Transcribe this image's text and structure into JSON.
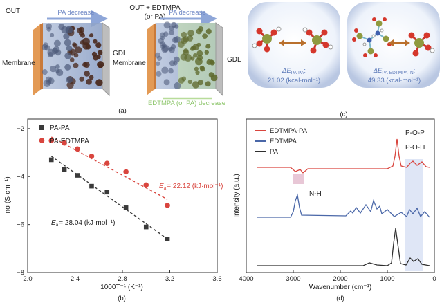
{
  "panel_a": {
    "title_left": "OUT",
    "title_right_line1": "OUT + EDTMPA",
    "title_right_line2": "(or PA)",
    "arrow_left": "PA decrease",
    "arrow_right": "PA decrease",
    "label_membrane_left": "Membrane",
    "label_gdl_left": "GDL",
    "label_membrane_right": "Membrane",
    "label_gdl_right": "GDL",
    "arrow_bottom": "EDTMPA (or PA) decrease",
    "caption": "(a)"
  },
  "panel_c": {
    "energy_left_symbol": "ΔE",
    "energy_left_sub": "PA-PA",
    "energy_left_suffix": ":",
    "energy_left_value": "21.02 (kcal·mol⁻¹)",
    "energy_right_symbol": "ΔE",
    "energy_right_sub": "PA-EDTMPA_N",
    "energy_right_suffix": ":",
    "energy_right_value": "49.33 (kcal·mol⁻¹)",
    "caption": "(c)"
  },
  "chart_data": [
    {
      "type": "scatter",
      "panel": "b",
      "xlabel": "1000T⁻¹ (K⁻¹)",
      "ylabel": "lnσ (S·cm⁻¹)",
      "xlim": [
        2.0,
        3.6
      ],
      "ylim": [
        -8,
        -1.6
      ],
      "xticks": [
        2.0,
        2.4,
        2.8,
        3.2,
        3.6
      ],
      "yticks": [
        -8,
        -6,
        -4,
        -2
      ],
      "legend_position": "top-left",
      "series": [
        {
          "name": "PA-PA",
          "marker": "square",
          "color": "#3a3a3a",
          "x": [
            2.2,
            2.31,
            2.42,
            2.54,
            2.67,
            2.83,
            3.0,
            3.18
          ],
          "y": [
            -3.3,
            -3.7,
            -3.95,
            -4.4,
            -4.65,
            -5.3,
            -6.1,
            -6.6
          ],
          "fit": [
            [
              2.2,
              -3.15
            ],
            [
              3.18,
              -6.6
            ]
          ],
          "annotation_symbol": "E",
          "annotation_sub": "a",
          "annotation_value": "= 28.04 (kJ·mol⁻¹)"
        },
        {
          "name": "PA-EDTMPA",
          "marker": "circle",
          "color": "#d9453e",
          "x": [
            2.2,
            2.31,
            2.42,
            2.54,
            2.67,
            2.83,
            3.0,
            3.18
          ],
          "y": [
            -2.5,
            -2.6,
            -2.85,
            -3.15,
            -3.45,
            -3.8,
            -4.35,
            -5.2
          ],
          "fit": [
            [
              2.2,
              -2.35
            ],
            [
              3.18,
              -4.95
            ]
          ],
          "annotation_symbol": "E",
          "annotation_sub": "a",
          "annotation_value": "= 22.12 (kJ·mol⁻¹)"
        }
      ],
      "caption": "(b)"
    },
    {
      "type": "line",
      "panel": "d",
      "xlabel": "Wavenumber (cm⁻¹)",
      "ylabel": "Intensity (a.u.)",
      "xlim": [
        4000,
        0
      ],
      "xticks": [
        4000,
        3000,
        2000,
        1000,
        0
      ],
      "legend_position": "top-left",
      "series": [
        {
          "name": "EDTMPA-PA",
          "color": "#d9453e"
        },
        {
          "name": "EDTMPA",
          "color": "#4a67a8"
        },
        {
          "name": "PA",
          "color": "#2f2f2f"
        }
      ],
      "annotations": [
        "P-O-P",
        "P-O-H",
        "N-H"
      ],
      "caption": "(d)"
    }
  ]
}
